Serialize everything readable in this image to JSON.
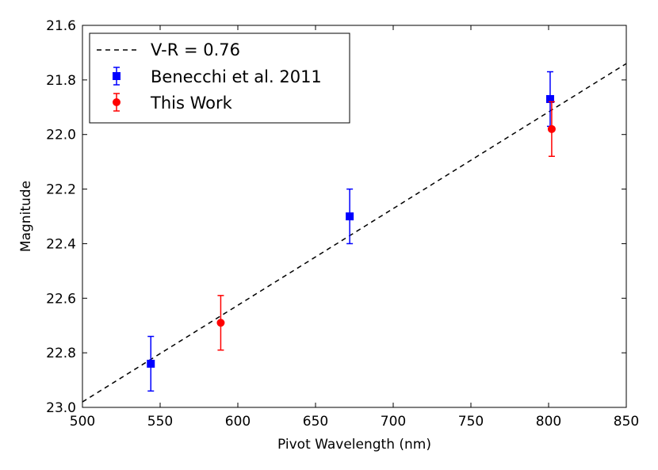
{
  "chart_data": {
    "type": "scatter",
    "title": "",
    "xlabel": "Pivot Wavelength (nm)",
    "ylabel": "Magnitude",
    "xlim": [
      500,
      850
    ],
    "ylim": [
      21.6,
      23.0
    ],
    "y_inverted": true,
    "xticks": [
      500,
      550,
      600,
      650,
      700,
      750,
      800,
      850
    ],
    "xtick_labels": [
      "500",
      "550",
      "600",
      "650",
      "700",
      "750",
      "800",
      "850"
    ],
    "yticks": [
      21.6,
      21.8,
      22.0,
      22.2,
      22.4,
      22.6,
      22.8,
      23.0
    ],
    "ytick_labels": [
      "21.6",
      "21.8",
      "22.0",
      "22.2",
      "22.4",
      "22.6",
      "22.8",
      "23.0"
    ],
    "grid": false,
    "legend_position": "top-left",
    "fit_line": {
      "name": "V-R = 0.76",
      "style": "dashed",
      "color": "#000000",
      "x": [
        500,
        850
      ],
      "y": [
        22.98,
        21.74
      ]
    },
    "series": [
      {
        "name": "Benecchi et al. 2011",
        "marker": "square",
        "color": "#0000ff",
        "x": [
          544,
          672,
          801
        ],
        "y": [
          22.84,
          22.3,
          21.87
        ],
        "yerr": [
          0.1,
          0.1,
          0.1
        ]
      },
      {
        "name": "This Work",
        "marker": "circle",
        "color": "#ff0000",
        "x": [
          589,
          802
        ],
        "y": [
          22.69,
          21.98
        ],
        "yerr": [
          0.1,
          0.1
        ]
      }
    ]
  }
}
